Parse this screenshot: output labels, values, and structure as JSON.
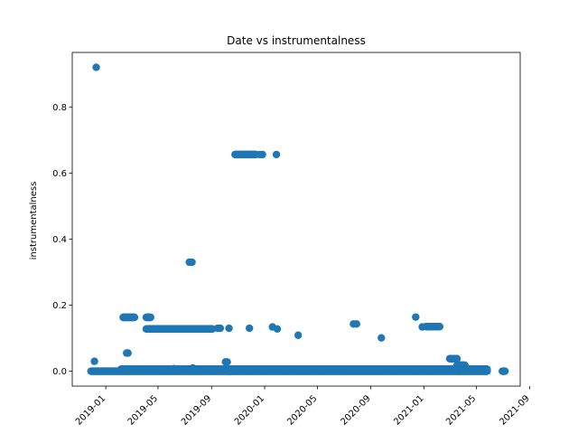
{
  "chart_data": {
    "type": "scatter",
    "title": "Date vs instrumentalness",
    "xlabel": "",
    "ylabel": "instrumentalness",
    "grid": false,
    "legend": "none",
    "xlim": [
      "2018-10-16",
      "2021-08-10"
    ],
    "ylim": [
      -0.045,
      0.965
    ],
    "x_ticks": [
      "2019-01-01",
      "2019-05-01",
      "2019-09-01",
      "2020-01-01",
      "2020-05-01",
      "2020-09-01",
      "2021-01-01",
      "2021-05-01",
      "2021-09-01"
    ],
    "x_tick_labels": [
      "2019-01",
      "2019-05",
      "2019-09",
      "2020-01",
      "2020-05",
      "2020-09",
      "2021-01",
      "2021-05",
      "2021-09"
    ],
    "y_ticks": [
      0.0,
      0.2,
      0.4,
      0.6,
      0.8
    ],
    "y_tick_labels": [
      "0.0",
      "0.2",
      "0.4",
      "0.6",
      "0.8"
    ],
    "marker_color": "#1f77b4",
    "series": [
      {
        "segments": [
          {
            "x0": "2018-11-28",
            "x1": "2021-05-26",
            "y": 0.0
          },
          {
            "x0": "2021-06-30",
            "x1": "2021-07-06",
            "y": 0.0
          },
          {
            "x0": "2019-02-10",
            "x1": "2019-03-08",
            "y": 0.163
          },
          {
            "x0": "2019-04-04",
            "x1": "2019-04-14",
            "y": 0.163
          },
          {
            "x0": "2019-04-04",
            "x1": "2019-09-03",
            "y": 0.128
          },
          {
            "x0": "2019-10-25",
            "x1": "2019-12-12",
            "y": 0.656
          },
          {
            "x0": "2021-01-06",
            "x1": "2021-02-06",
            "y": 0.135
          },
          {
            "x0": "2021-03-01",
            "x1": "2021-03-18",
            "y": 0.038
          },
          {
            "x0": "2021-03-18",
            "x1": "2021-04-05",
            "y": 0.018
          },
          {
            "x0": "2019-02-05",
            "x1": "2021-05-26",
            "y": 0.006
          }
        ],
        "points": [
          {
            "x": "2018-12-10",
            "y": 0.92
          },
          {
            "x": "2018-12-06",
            "y": 0.03
          },
          {
            "x": "2019-02-18",
            "y": 0.055
          },
          {
            "x": "2019-02-21",
            "y": 0.055
          },
          {
            "x": "2019-07-12",
            "y": 0.33
          },
          {
            "x": "2019-07-18",
            "y": 0.33
          },
          {
            "x": "2019-09-15",
            "y": 0.13
          },
          {
            "x": "2019-09-21",
            "y": 0.13
          },
          {
            "x": "2019-10-11",
            "y": 0.13
          },
          {
            "x": "2019-11-27",
            "y": 0.13
          },
          {
            "x": "2019-10-03",
            "y": 0.028
          },
          {
            "x": "2019-10-07",
            "y": 0.028
          },
          {
            "x": "2019-12-21",
            "y": 0.656
          },
          {
            "x": "2019-12-27",
            "y": 0.656
          },
          {
            "x": "2020-01-28",
            "y": 0.656
          },
          {
            "x": "2020-01-19",
            "y": 0.134
          },
          {
            "x": "2020-01-30",
            "y": 0.128
          },
          {
            "x": "2020-03-18",
            "y": 0.109
          },
          {
            "x": "2020-07-23",
            "y": 0.143
          },
          {
            "x": "2020-07-30",
            "y": 0.143
          },
          {
            "x": "2020-09-25",
            "y": 0.101
          },
          {
            "x": "2020-12-13",
            "y": 0.164
          },
          {
            "x": "2020-12-28",
            "y": 0.134
          },
          {
            "x": "2019-06-07",
            "y": 0.008
          },
          {
            "x": "2019-07-20",
            "y": 0.01
          }
        ]
      }
    ]
  }
}
